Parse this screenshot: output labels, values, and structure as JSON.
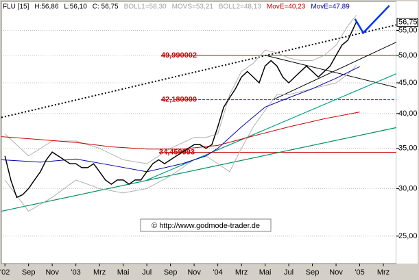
{
  "chart_data": {
    "type": "line",
    "log_scale": true,
    "grid": true,
    "header": [
      {
        "text": "FLU [15]",
        "color": "#000000"
      },
      {
        "text": "H:56,86",
        "color": "#000000"
      },
      {
        "text": "L:56,10",
        "color": "#000000"
      },
      {
        "text": "C: 56,75",
        "color": "#000000"
      },
      {
        "text": "BOLL1=58,30",
        "color": "#a0a0a0"
      },
      {
        "text": "MOVS=53,21",
        "color": "#a0a0a0"
      },
      {
        "text": "BOLL2=48,13",
        "color": "#a0a0a0"
      },
      {
        "text": "MovE=40,23",
        "color": "#cc0000"
      },
      {
        "text": "MovE=47,89",
        "color": "#0000aa"
      }
    ],
    "copyright": "© http://www.godmode-trader.de",
    "last_label": {
      "value": 56.75,
      "label": "56,75"
    },
    "xlim": [
      -0.3,
      33.1
    ],
    "ylim": [
      22.5,
      61.5
    ],
    "xticks": [
      {
        "value": 0,
        "label": "'02"
      },
      {
        "value": 2,
        "label": "Sep"
      },
      {
        "value": 4,
        "label": "Nov"
      },
      {
        "value": 6,
        "label": "'03"
      },
      {
        "value": 8,
        "label": "Mrz"
      },
      {
        "value": 10,
        "label": "Mai"
      },
      {
        "value": 12,
        "label": "Jul"
      },
      {
        "value": 14,
        "label": "Sep"
      },
      {
        "value": 16,
        "label": "Nov"
      },
      {
        "value": 18,
        "label": "'04"
      },
      {
        "value": 20,
        "label": "Mrz"
      },
      {
        "value": 22,
        "label": "Mai"
      },
      {
        "value": 24,
        "label": "Jul"
      },
      {
        "value": 26,
        "label": "Sep"
      },
      {
        "value": 28,
        "label": "Nov"
      },
      {
        "value": 30,
        "label": "'05"
      },
      {
        "value": 32,
        "label": "Mrz"
      }
    ],
    "yticks": [
      {
        "value": 25,
        "label": "25,00"
      },
      {
        "value": 30,
        "label": "30,00"
      },
      {
        "value": 35,
        "label": "35,00"
      },
      {
        "value": 40,
        "label": "40,00"
      },
      {
        "value": 45,
        "label": "45,00"
      },
      {
        "value": 50,
        "label": "50,00"
      },
      {
        "value": 55,
        "label": "55,00"
      }
    ],
    "series": [
      {
        "name": "BOLL1",
        "color": "#b0b0b0",
        "x": [
          0,
          2,
          4,
          6,
          8,
          10,
          12,
          14,
          16,
          17,
          18,
          19,
          20,
          21,
          22,
          23,
          24,
          25,
          26,
          27,
          28,
          29,
          29.7
        ],
        "values": [
          37,
          34,
          36,
          36,
          35,
          33.5,
          33,
          35,
          36.5,
          36.5,
          37,
          43,
          47,
          48.5,
          51,
          50.5,
          49.5,
          49,
          49,
          50,
          52,
          56,
          58.3
        ]
      },
      {
        "name": "BOLL2",
        "color": "#b0b0b0",
        "x": [
          0,
          2,
          4,
          6,
          8,
          10,
          12,
          14,
          16,
          17,
          18,
          19,
          20,
          21,
          22,
          23,
          24,
          25,
          26,
          27,
          28,
          29,
          29.7
        ],
        "values": [
          31,
          27.5,
          29,
          31,
          30,
          29.5,
          30,
          31.5,
          33.5,
          34,
          33,
          32,
          35,
          38,
          40.5,
          43,
          43,
          43.5,
          44,
          44.5,
          45,
          46.5,
          48.13
        ]
      },
      {
        "name": "MovE 200",
        "color": "#cc0000",
        "x": [
          -0.3,
          3,
          6,
          9,
          12,
          15,
          18,
          21,
          24,
          27,
          30
        ],
        "values": [
          36.6,
          36.2,
          35.8,
          35.2,
          34.9,
          34.9,
          35.4,
          36.7,
          38.0,
          39.2,
          40.23
        ]
      },
      {
        "name": "MovE 50",
        "color": "#0000aa",
        "x": [
          -0.3,
          3,
          6,
          9,
          12,
          15,
          17,
          18,
          20,
          22,
          24,
          26,
          28,
          30
        ],
        "values": [
          33.5,
          33.2,
          33.6,
          32.8,
          32.0,
          33.0,
          34.0,
          35.0,
          38.0,
          41.0,
          42.5,
          44.0,
          45.8,
          47.89
        ]
      },
      {
        "name": "FLU",
        "color": "#000000",
        "x": [
          0,
          0.5,
          1,
          1.5,
          2,
          2.5,
          3,
          3.5,
          4,
          4.5,
          5,
          5.5,
          6,
          6.5,
          7,
          7.5,
          8,
          8.5,
          9,
          9.5,
          10,
          10.5,
          11,
          11.5,
          12,
          12.5,
          13,
          13.5,
          14,
          14.5,
          15,
          15.5,
          16,
          16.5,
          17,
          17.5,
          18,
          18.5,
          19,
          19.5,
          20,
          20.5,
          21,
          21.5,
          22,
          22.5,
          23,
          23.5,
          24,
          24.5,
          25,
          25.5,
          26,
          26.5,
          27,
          27.5,
          28,
          28.5,
          29,
          29.7
        ],
        "values": [
          34,
          31,
          29,
          29.3,
          30,
          31,
          32,
          33.5,
          34.5,
          34,
          33.5,
          33,
          33,
          32.5,
          32.5,
          33,
          32,
          31,
          30.5,
          31,
          31,
          30.5,
          31,
          31,
          32,
          33,
          33.5,
          33,
          33.5,
          34,
          34.5,
          35,
          35.5,
          35.5,
          35,
          35.5,
          38,
          41,
          42.5,
          44,
          46,
          47,
          46,
          45,
          48,
          49,
          48,
          46,
          45,
          46,
          47,
          48,
          47,
          46,
          47,
          48,
          50,
          52,
          53,
          56.75
        ]
      }
    ],
    "hlines": [
      {
        "value": 49.990002,
        "label": "49,990002",
        "color": "#cc0000"
      },
      {
        "value": 42.18,
        "label": "42,180000",
        "color": "#cc0000"
      },
      {
        "value": 34.459993,
        "label": "34,459993",
        "color": "#cc0000"
      }
    ],
    "trendlines": [
      {
        "color": "#000000",
        "dash": "2,3",
        "width": 2,
        "x": [
          -0.3,
          33.1
        ],
        "values": [
          39.4,
          56.2
        ]
      },
      {
        "color": "#000000",
        "dash": "",
        "width": 1,
        "x": [
          22.2,
          33.1
        ],
        "values": [
          49.9,
          44.2
        ]
      },
      {
        "color": "#000000",
        "dash": "",
        "width": 1,
        "x": [
          22.7,
          33.1
        ],
        "values": [
          42.2,
          52.6
        ]
      },
      {
        "color": "#009060",
        "dash": "",
        "width": 1.2,
        "x": [
          -0.3,
          33.1
        ],
        "values": [
          27.5,
          37.9
        ]
      },
      {
        "color": "#00a080",
        "dash": "",
        "width": 1.2,
        "x": [
          12,
          33.1
        ],
        "values": [
          31,
          46.6
        ]
      },
      {
        "color": "#0033ff",
        "dash": "",
        "width": 2.5,
        "x": [
          29.6,
          30.3,
          32.5
        ],
        "values": [
          57.5,
          54.5,
          60.5
        ]
      }
    ]
  }
}
